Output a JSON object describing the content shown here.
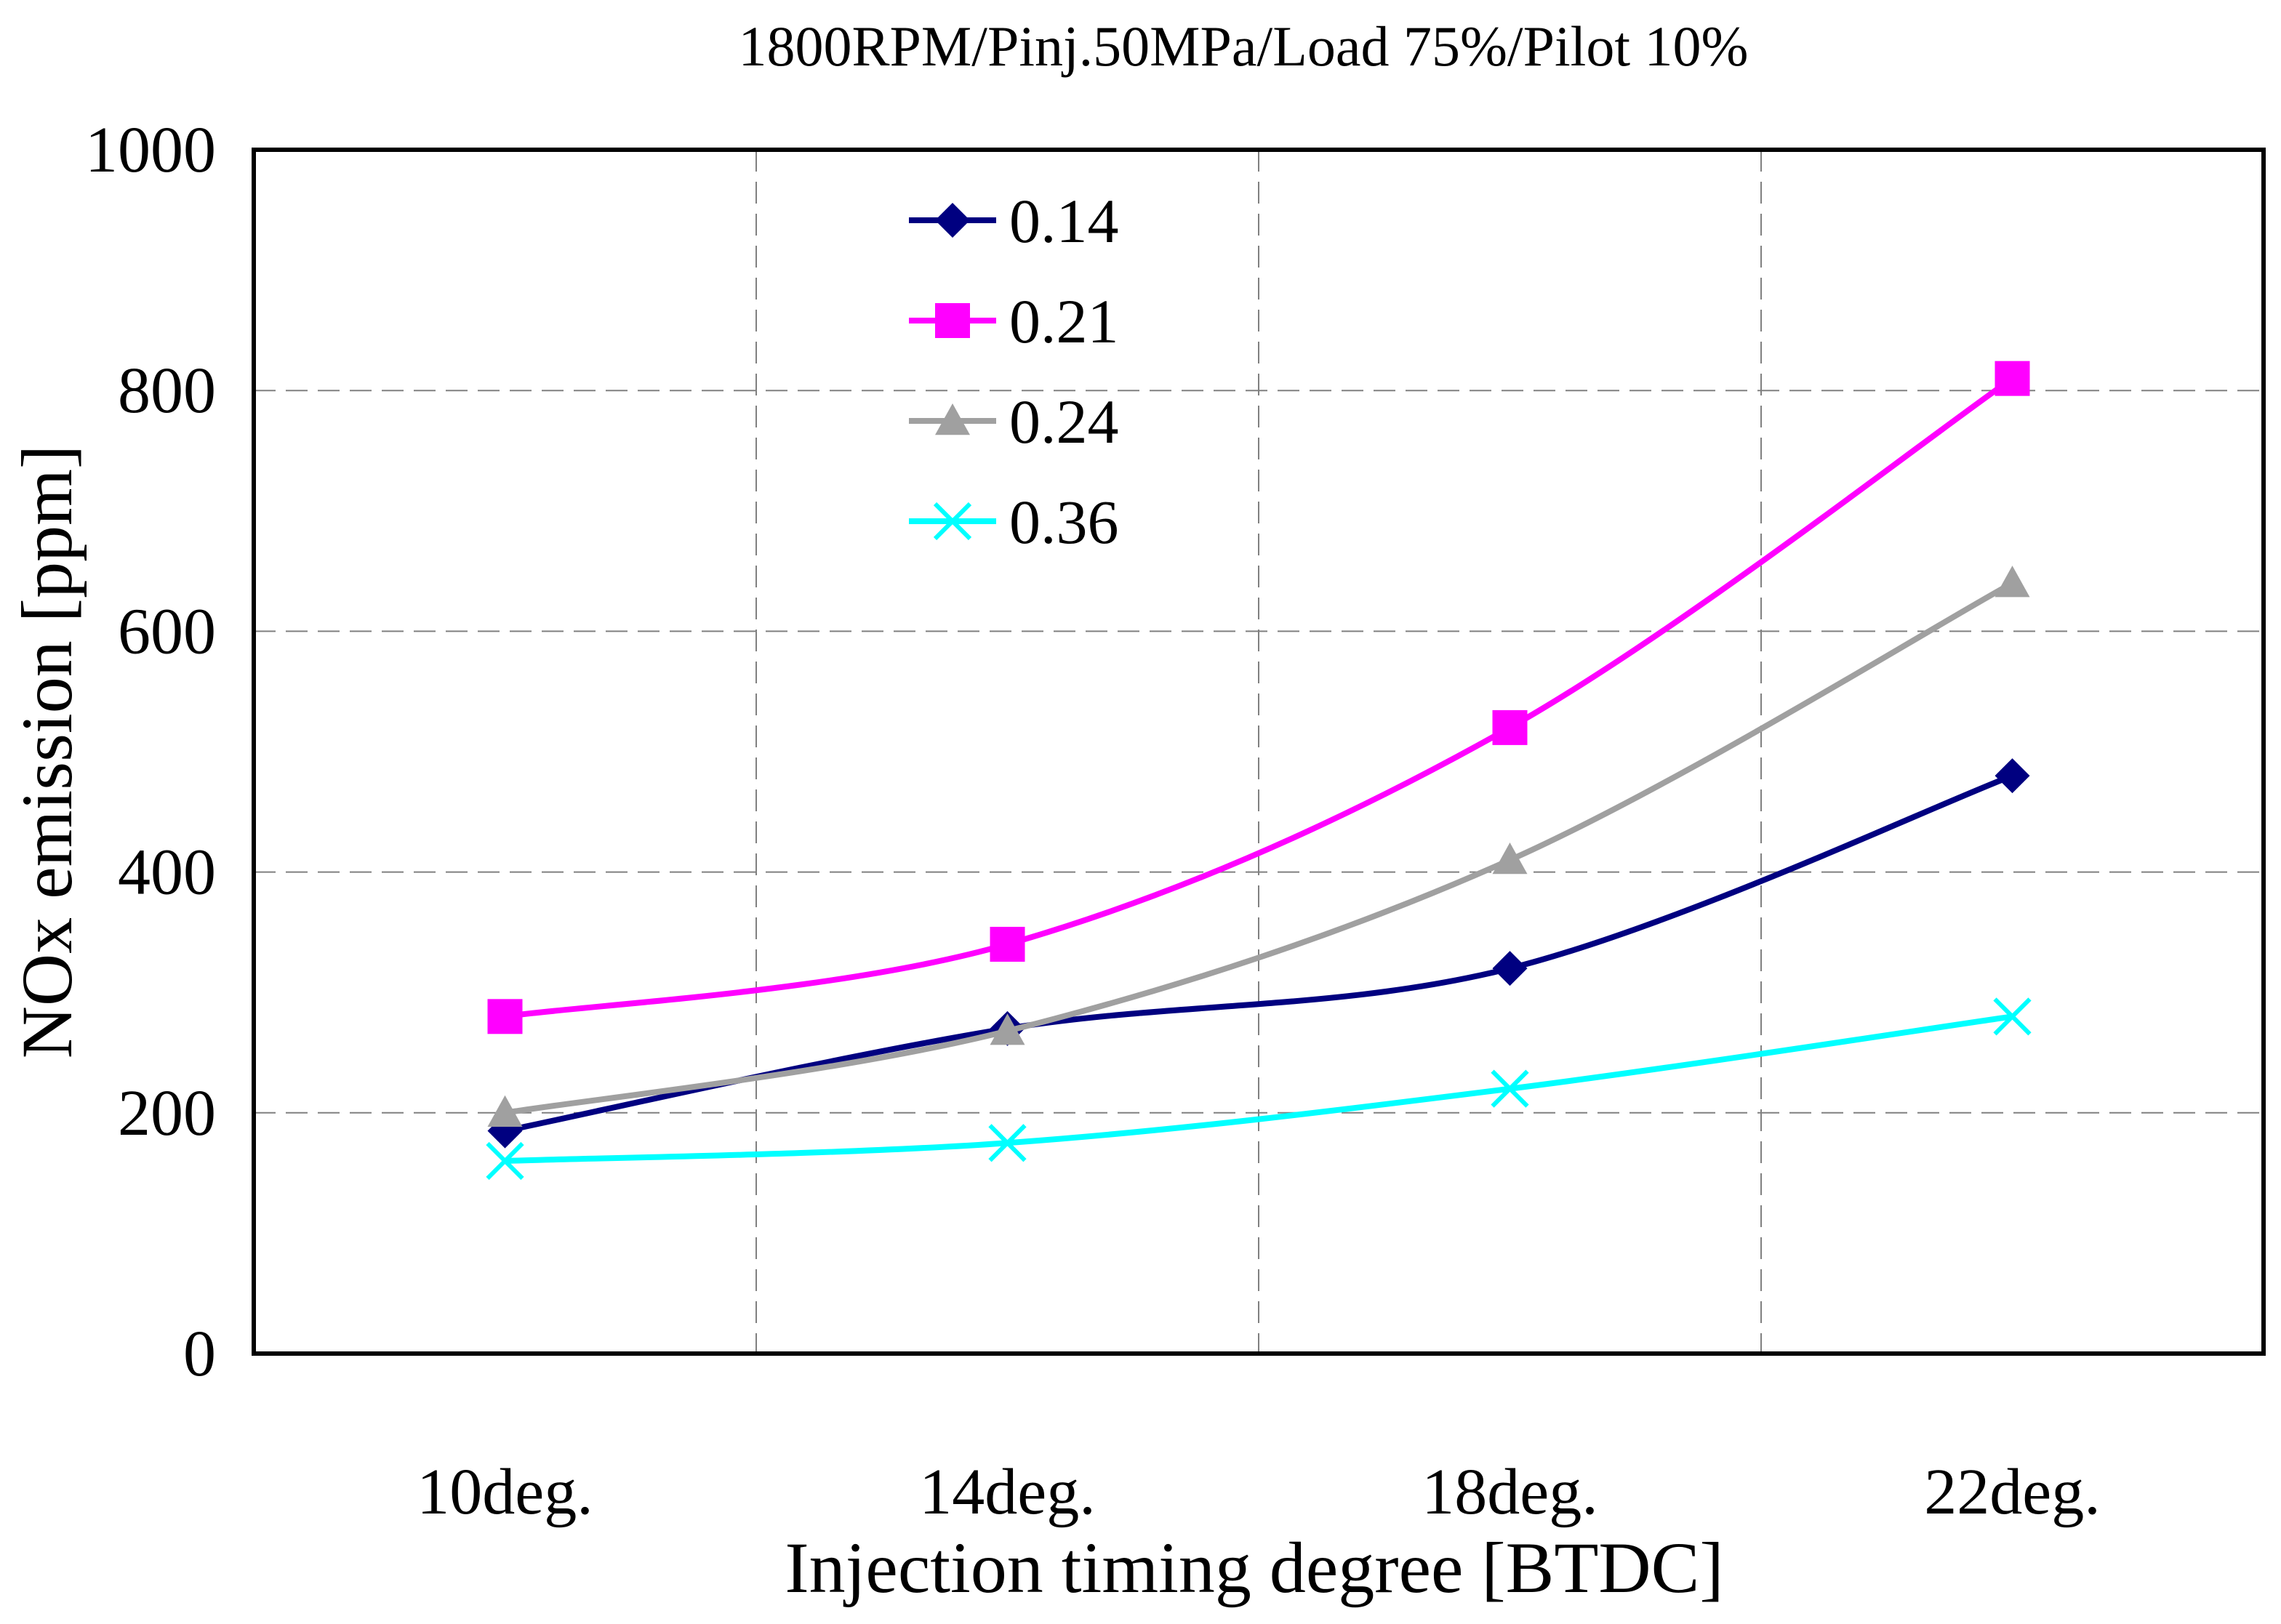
{
  "chart_data": {
    "type": "line",
    "title": "1800RPM/Pinj.50MPa/Load 75%/Pilot 10%",
    "xlabel": "Injection timing degree [BTDC]",
    "ylabel": "NOx emission [ppm]",
    "categories": [
      "10deg.",
      "14deg.",
      "18deg.",
      "22deg."
    ],
    "ylim": [
      0,
      1000
    ],
    "yticks": [
      "0",
      "200",
      "400",
      "600",
      "800",
      "1000"
    ],
    "grid": true,
    "legend_position": "top-center",
    "series": [
      {
        "name": "0.14",
        "color": "#000080",
        "marker": "diamond",
        "values": [
          185,
          270,
          320,
          480
        ]
      },
      {
        "name": "0.21",
        "color": "#ff00ff",
        "marker": "square",
        "values": [
          280,
          340,
          520,
          810
        ]
      },
      {
        "name": "0.24",
        "color": "#a0a0a0",
        "marker": "triangle",
        "values": [
          200,
          268,
          410,
          640
        ]
      },
      {
        "name": "0.36",
        "color": "#00ffff",
        "marker": "x",
        "values": [
          160,
          175,
          220,
          280
        ]
      }
    ]
  }
}
